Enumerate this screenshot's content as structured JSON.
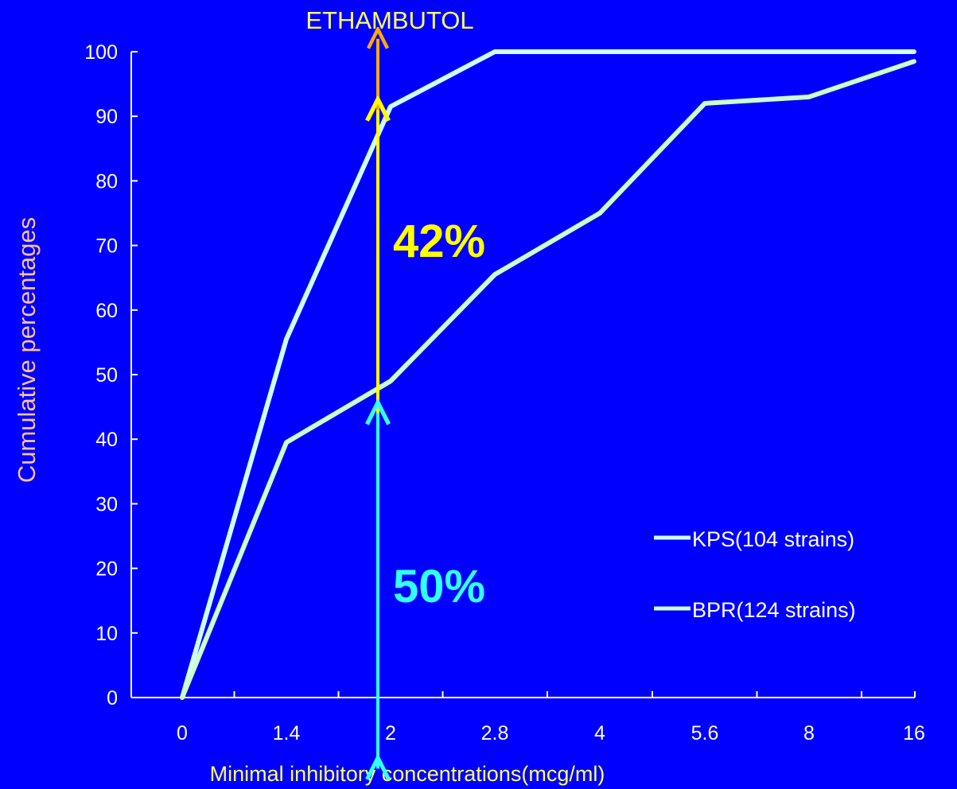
{
  "chart_data": {
    "type": "line",
    "title": "ETHAMBUTOL",
    "xlabel": "Minimal inhibitory concentrations(mcg/ml)",
    "ylabel": "Cumulative percentages",
    "categories": [
      "0",
      "1.4",
      "2",
      "2.8",
      "4",
      "5.6",
      "8",
      "16"
    ],
    "y_ticks": [
      "0",
      "10",
      "20",
      "30",
      "40",
      "50",
      "60",
      "70",
      "80",
      "90",
      "100"
    ],
    "ylim": [
      0,
      100
    ],
    "grid": false,
    "legend_position": "bottom-right",
    "series": [
      {
        "name": "KPS(104 strains)",
        "color": "#ccffff",
        "values": [
          0,
          55.5,
          91.5,
          100,
          100,
          100,
          100,
          100
        ]
      },
      {
        "name": "BPR(124 strains)",
        "color": "#ccffcc",
        "values": [
          0,
          39.5,
          49,
          65.5,
          75,
          92,
          93,
          98.5
        ]
      }
    ],
    "annotations": [
      {
        "label": "42%",
        "color": "#ffff00",
        "x": "2",
        "y_from": 44,
        "y_to": 91
      },
      {
        "label": "50%",
        "color": "#33ffff",
        "x": "2",
        "y_from": -11,
        "y_to": 44
      },
      {
        "label": "",
        "color": "#ffaa00",
        "x": "2",
        "y_from": 91,
        "y_to": 102
      }
    ]
  }
}
